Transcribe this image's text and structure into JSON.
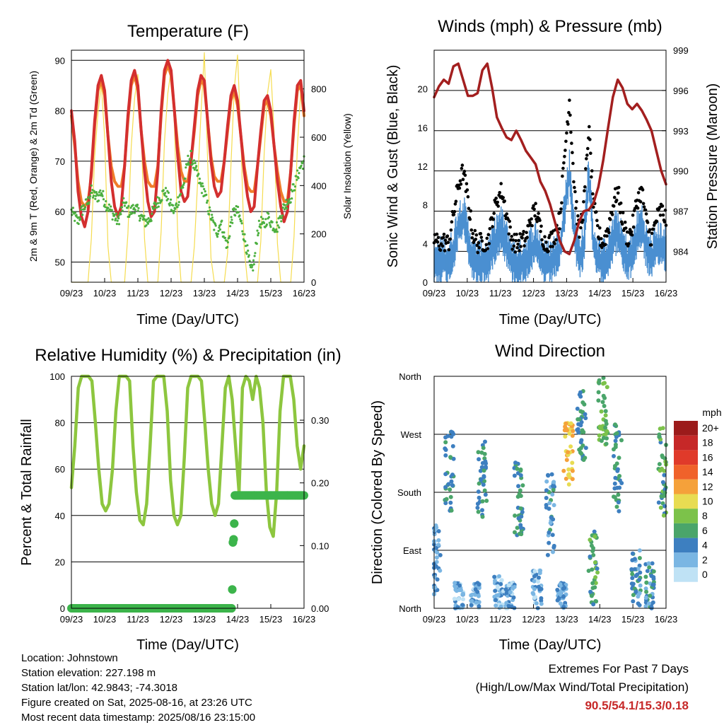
{
  "chart_data": [
    {
      "type": "line",
      "title": "Temperature (F)",
      "xlabel": "Time (Day/UTC)",
      "ylabel": "2m & 9m T (Red, Orange) & 2m Td (Green)",
      "y2label": "Solar Insolation (Yellow)",
      "x_ticks": [
        "09/23",
        "10/23",
        "11/23",
        "12/23",
        "13/23",
        "14/23",
        "15/23",
        "16/23"
      ],
      "y_ticks": [
        50,
        60,
        70,
        80,
        90
      ],
      "y2_ticks": [
        0,
        200,
        400,
        600,
        800
      ],
      "ylim": [
        46,
        92
      ],
      "y2lim": [
        0,
        960
      ],
      "grid": true,
      "series": [
        {
          "name": "2m T",
          "color": "#d32f2f",
          "values": [
            80,
            74,
            64,
            59,
            57,
            60,
            68,
            78,
            85,
            87,
            84,
            75,
            66,
            61,
            59,
            61,
            69,
            79,
            86,
            88,
            85,
            76,
            68,
            62,
            59,
            60,
            68,
            80,
            88,
            90,
            88,
            80,
            71,
            64,
            62,
            63,
            70,
            77,
            84,
            87,
            86,
            78,
            70,
            65,
            63,
            64,
            70,
            77,
            83,
            85,
            82,
            75,
            68,
            63,
            60,
            61,
            69,
            76,
            82,
            83,
            80,
            73,
            66,
            61,
            58,
            60,
            68,
            78,
            85,
            86,
            80
          ]
        },
        {
          "name": "9m T",
          "color": "#f07c2a",
          "values": [
            79,
            73,
            66,
            62,
            61,
            62,
            67,
            77,
            84,
            86,
            83,
            75,
            69,
            66,
            65,
            65,
            69,
            78,
            85,
            87,
            84,
            76,
            70,
            66,
            65,
            65,
            69,
            79,
            87,
            89,
            87,
            80,
            73,
            68,
            66,
            66,
            70,
            76,
            83,
            86,
            85,
            78,
            71,
            67,
            66,
            66,
            70,
            76,
            82,
            84,
            81,
            75,
            69,
            65,
            64,
            64,
            69,
            75,
            81,
            82,
            79,
            73,
            68,
            64,
            62,
            62,
            68,
            77,
            84,
            85,
            79
          ]
        },
        {
          "name": "2m Td",
          "color": "#4caf3f",
          "values": [
            60,
            59,
            58,
            60,
            61,
            62,
            64,
            63,
            63,
            64,
            62,
            61,
            60,
            59,
            58,
            60,
            62,
            60,
            60,
            61,
            60,
            59,
            58,
            58,
            59,
            61,
            62,
            63,
            64,
            63,
            61,
            60,
            62,
            64,
            66,
            70,
            71,
            69,
            67,
            65,
            64,
            61,
            59,
            57,
            56,
            58,
            55,
            53,
            58,
            60,
            60,
            58,
            55,
            52,
            48,
            50,
            56,
            58,
            57,
            59,
            58,
            57,
            57,
            59,
            61,
            62,
            63,
            65,
            67,
            69,
            70
          ]
        },
        {
          "name": "Solar Insolation",
          "axis": "y2",
          "color": "#f5dc50",
          "values": [
            0,
            0,
            0,
            0,
            0,
            0,
            180,
            520,
            700,
            820,
            600,
            150,
            0,
            0,
            0,
            0,
            0,
            200,
            560,
            760,
            860,
            640,
            180,
            0,
            0,
            0,
            0,
            210,
            580,
            780,
            880,
            650,
            190,
            0,
            0,
            0,
            0,
            150,
            420,
            700,
            950,
            500,
            100,
            0,
            0,
            0,
            0,
            120,
            480,
            800,
            940,
            600,
            140,
            0,
            0,
            0,
            0,
            170,
            530,
            780,
            880,
            620,
            160,
            0,
            0,
            0,
            0,
            190,
            560,
            790,
            700
          ]
        }
      ]
    },
    {
      "type": "line",
      "title": "Winds (mph) & Pressure (mb)",
      "xlabel": "Time (Day/UTC)",
      "ylabel": "Sonic Wind & Gust (Blue, Black)",
      "y2label": "Station Pressure (Maroon)",
      "x_ticks": [
        "09/23",
        "10/23",
        "11/23",
        "12/23",
        "13/23",
        "14/23",
        "15/23",
        "16/23"
      ],
      "y_ticks": [
        0,
        4,
        8,
        12,
        16,
        20
      ],
      "y2_ticks": [
        984,
        987,
        990,
        993,
        996,
        999
      ],
      "ylim": [
        0,
        24
      ],
      "y2lim": [
        981.7,
        999
      ],
      "grid": true,
      "series": [
        {
          "name": "Pressure",
          "axis": "y2",
          "color": "#a31f1f",
          "values": [
            995.5,
            996.3,
            996.8,
            996.5,
            997.8,
            998.0,
            996.8,
            995.6,
            995.6,
            995.8,
            997.5,
            998.0,
            996.2,
            994.0,
            993.2,
            992.5,
            992.3,
            993.0,
            992.3,
            991.5,
            991.0,
            990.5,
            989.2,
            988.5,
            987.5,
            986.2,
            984.8,
            984.0,
            983.8,
            984.8,
            986.2,
            987.0,
            987.1,
            987.6,
            988.8,
            990.8,
            993.2,
            995.5,
            996.8,
            996.2,
            995.0,
            994.6,
            995.0,
            994.5,
            993.8,
            993.0,
            991.5,
            990.0,
            989.0
          ]
        },
        {
          "name": "Wind",
          "color": "#4a8fd1",
          "values": [
            2.5,
            2.8,
            3.0,
            2.6,
            4.0,
            6.5,
            7.5,
            5.0,
            3.0,
            2.5,
            2.8,
            2.6,
            4.0,
            5.5,
            6.0,
            4.5,
            3.0,
            2.4,
            2.6,
            3.0,
            4.0,
            4.5,
            3.5,
            2.4,
            2.6,
            3.2,
            4.0,
            8.0,
            12.0,
            6.0,
            3.0,
            4.5,
            12.0,
            4.5,
            3.0,
            2.6,
            3.5,
            5.0,
            6.0,
            4.0,
            2.8,
            3.5,
            5.5,
            6.5,
            4.0,
            3.0,
            4.2,
            4.5,
            4.0
          ]
        },
        {
          "name": "Gust",
          "color": "#000000",
          "values": [
            4.5,
            4.0,
            4.2,
            4.0,
            7.0,
            10.0,
            11.5,
            8.5,
            5.0,
            4.0,
            4.2,
            4.0,
            6.5,
            8.5,
            9.5,
            7.0,
            4.5,
            4.0,
            4.2,
            4.5,
            6.5,
            7.5,
            5.5,
            4.0,
            4.2,
            5.0,
            6.5,
            13.0,
            19.0,
            10.0,
            5.0,
            8.0,
            16.0,
            8.0,
            5.0,
            4.0,
            5.5,
            8.0,
            9.5,
            6.5,
            4.5,
            5.5,
            8.5,
            9.5,
            6.0,
            4.5,
            6.5,
            7.5,
            6.5
          ]
        }
      ]
    },
    {
      "type": "line",
      "title": "Relative Humidity (%) & Precipitation (in)",
      "xlabel": "Time (Day/UTC)",
      "ylabel": "Percent & Total Rainfall",
      "x_ticks": [
        "09/23",
        "10/23",
        "11/23",
        "12/23",
        "13/23",
        "14/23",
        "15/23",
        "16/23"
      ],
      "y_ticks": [
        0,
        20,
        40,
        60,
        80,
        100
      ],
      "y2_ticks": [
        "0.00",
        "0.10",
        "0.20",
        "0.30"
      ],
      "ylim": [
        0,
        100
      ],
      "y2lim": [
        0,
        0.37
      ],
      "grid": true,
      "series": [
        {
          "name": "Relative Humidity",
          "color": "#8dc63f",
          "values": [
            52,
            70,
            95,
            100,
            100,
            100,
            98,
            80,
            60,
            45,
            42,
            45,
            60,
            85,
            100,
            100,
            100,
            98,
            70,
            50,
            38,
            36,
            45,
            70,
            98,
            100,
            100,
            100,
            85,
            55,
            40,
            36,
            40,
            65,
            95,
            100,
            100,
            100,
            98,
            80,
            60,
            45,
            40,
            45,
            70,
            95,
            100,
            90,
            70,
            50,
            95,
            100,
            98,
            90,
            100,
            95,
            80,
            50,
            35,
            31,
            50,
            85,
            100,
            100,
            100,
            90,
            70,
            60,
            70
          ]
        },
        {
          "name": "Precipitation",
          "axis": "y2",
          "color": "#3cb44b",
          "x_days": [
            0,
            0.5,
            1,
            1.5,
            2,
            2.5,
            3,
            3.5,
            4,
            4.5,
            4.82,
            4.84,
            4.86,
            4.88,
            4.9,
            4.92,
            4.95,
            5.0,
            5.5,
            6,
            6.5,
            7
          ],
          "values": [
            0,
            0,
            0,
            0,
            0,
            0,
            0,
            0,
            0,
            0,
            0,
            0.03,
            0.105,
            0.11,
            0.135,
            0.18,
            0.18,
            0.18,
            0.18,
            0.18,
            0.18,
            0.18
          ]
        }
      ]
    },
    {
      "type": "scatter",
      "title": "Wind Direction",
      "xlabel": "Time (Day/UTC)",
      "ylabel": "Direction (Colored By Speed)",
      "x_ticks": [
        "09/23",
        "10/23",
        "11/23",
        "12/23",
        "13/23",
        "14/23",
        "15/23",
        "16/23"
      ],
      "y_ticks": [
        "North",
        "East",
        "South",
        "West",
        "North"
      ],
      "ylim": [
        0,
        360
      ],
      "grid": true,
      "legend": {
        "title": "mph",
        "position": "right",
        "labels": [
          "20+",
          "18",
          "16",
          "14",
          "12",
          "10",
          "8",
          "6",
          "4",
          "2",
          "0"
        ],
        "colors": [
          "#9c1b1b",
          "#c62828",
          "#e03a2a",
          "#f0622a",
          "#f5a13a",
          "#e8dc52",
          "#7cc24a",
          "#4aa56a",
          "#3d7fc0",
          "#7ab6e3",
          "#bfe2f5"
        ]
      },
      "clusters": [
        {
          "day": 0.05,
          "dir_min": 20,
          "dir_max": 130,
          "speed": 3
        },
        {
          "day": 0.45,
          "dir_min": 150,
          "dir_max": 280,
          "speed": 5
        },
        {
          "day": 0.75,
          "dir_min": 0,
          "dir_max": 40,
          "speed": 2
        },
        {
          "day": 1.25,
          "dir_min": 0,
          "dir_max": 40,
          "speed": 2
        },
        {
          "day": 1.45,
          "dir_min": 140,
          "dir_max": 260,
          "speed": 5
        },
        {
          "day": 1.95,
          "dir_min": 0,
          "dir_max": 50,
          "speed": 2
        },
        {
          "day": 2.3,
          "dir_min": 0,
          "dir_max": 40,
          "speed": 2
        },
        {
          "day": 2.55,
          "dir_min": 110,
          "dir_max": 230,
          "speed": 5
        },
        {
          "day": 3.1,
          "dir_min": 0,
          "dir_max": 60,
          "speed": 2
        },
        {
          "day": 3.5,
          "dir_min": 70,
          "dir_max": 210,
          "speed": 4
        },
        {
          "day": 3.85,
          "dir_min": 0,
          "dir_max": 40,
          "speed": 3
        },
        {
          "day": 4.05,
          "dir_min": 190,
          "dir_max": 290,
          "speed": 11
        },
        {
          "day": 4.45,
          "dir_min": 230,
          "dir_max": 340,
          "speed": 5
        },
        {
          "day": 4.8,
          "dir_min": 0,
          "dir_max": 120,
          "speed": 6
        },
        {
          "day": 5.1,
          "dir_min": 250,
          "dir_max": 360,
          "speed": 7
        },
        {
          "day": 5.55,
          "dir_min": 150,
          "dir_max": 290,
          "speed": 5
        },
        {
          "day": 6.1,
          "dir_min": 0,
          "dir_max": 90,
          "speed": 4
        },
        {
          "day": 6.5,
          "dir_min": 0,
          "dir_max": 70,
          "speed": 4
        },
        {
          "day": 6.9,
          "dir_min": 140,
          "dir_max": 280,
          "speed": 6
        }
      ]
    }
  ],
  "footer": {
    "location": "Location: Johnstown",
    "elevation": "Station elevation: 227.198 m",
    "latlon": "Station lat/lon: 42.9843; -74.3018",
    "created": "Figure created on Sat, 2025-08-16, at 23:26 UTC",
    "timestamp": "Most recent data timestamp: 2025/08/16 23:15:00",
    "extremes_title": "Extremes For Past 7 Days",
    "extremes_sub": "(High/Low/Max Wind/Total Precipitation)",
    "extremes_values": "90.5/54.1/15.3/0.18"
  }
}
